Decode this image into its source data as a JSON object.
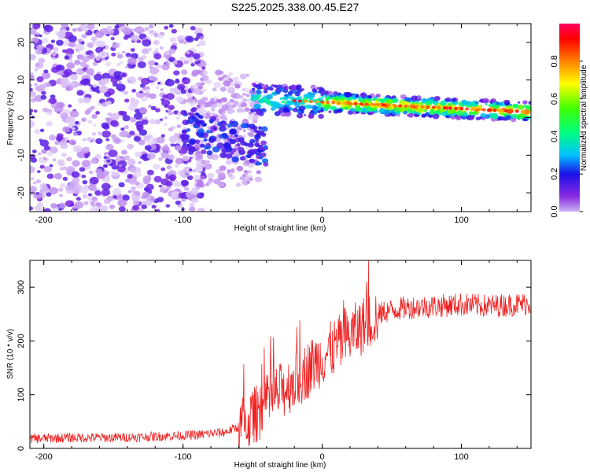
{
  "title": "S225.2025.338.00.45.E27",
  "chart_data": [
    {
      "type": "heatmap",
      "title": "S225.2025.338.00.45.E27",
      "xlabel": "Height of straight line (km)",
      "ylabel": "Frequency (Hz)",
      "xlim": [
        -210,
        150
      ],
      "ylim": [
        -25,
        25
      ],
      "xticks": [
        -200,
        -100,
        0,
        100
      ],
      "yticks": [
        -20,
        -10,
        0,
        10,
        20
      ],
      "colorbar": {
        "label": "Normalized spectral amplitude",
        "range": [
          0,
          1
        ],
        "ticks": [
          0.0,
          0.2,
          0.4,
          0.6,
          0.8
        ],
        "colormap": "rainbow (purple-blue-cyan-green-yellow-orange-red-magenta)"
      },
      "features": [
        {
          "description": "scattered low-amplitude noise",
          "x_range": [
            -210,
            -90
          ],
          "y_range": [
            -25,
            25
          ],
          "amplitude": 0.1
        },
        {
          "description": "diagonal band",
          "x_range": [
            -100,
            -50
          ],
          "y_center_start": -3,
          "y_center_end": -8,
          "amplitude": 0.2
        },
        {
          "description": "main signal ridge",
          "x_range": [
            -50,
            150
          ],
          "y_center_start": 5,
          "y_center_end": 1.5,
          "amplitude": 0.8
        }
      ]
    },
    {
      "type": "line",
      "xlabel": "Height of straight line (km)",
      "ylabel": "SNR (10 * v/v)",
      "xlim": [
        -210,
        150
      ],
      "ylim": [
        0,
        350
      ],
      "xticks": [
        -200,
        -100,
        0,
        100
      ],
      "yticks": [
        0,
        100,
        200,
        300
      ],
      "series": [
        {
          "name": "SNR",
          "color": "#ee2222",
          "x": [
            -210,
            -180,
            -150,
            -120,
            -90,
            -70,
            -55,
            -45,
            -35,
            -25,
            -15,
            -5,
            5,
            15,
            25,
            35,
            45,
            60,
            80,
            100,
            120,
            150
          ],
          "y": [
            18,
            20,
            20,
            22,
            25,
            30,
            45,
            70,
            95,
            115,
            135,
            160,
            180,
            200,
            220,
            240,
            255,
            262,
            265,
            268,
            265,
            270
          ]
        }
      ]
    }
  ]
}
